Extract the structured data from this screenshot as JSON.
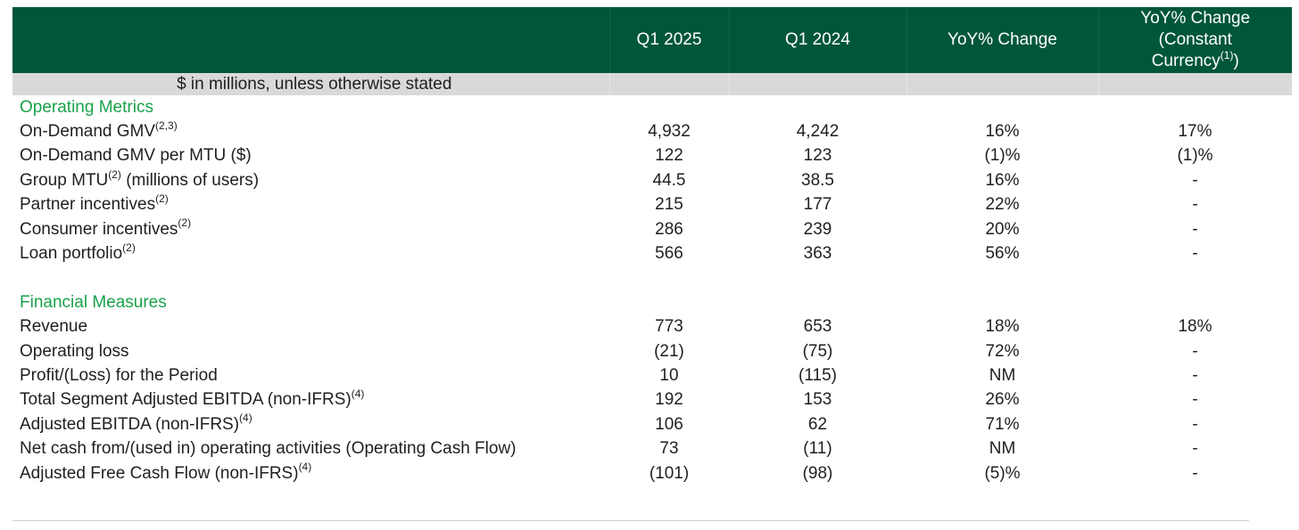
{
  "header": {
    "columns": [
      "",
      "Q1 2025",
      "Q1 2024",
      "YoY% Change"
    ],
    "last_column": {
      "line1": "YoY% Change",
      "line2": "(Constant",
      "line3": "Currency",
      "sup": "(1)",
      "close": ")"
    }
  },
  "units_note": "$ in millions, unless otherwise stated",
  "sections": [
    {
      "title": "Operating Metrics",
      "rows": [
        {
          "label": "On-Demand GMV",
          "sup": "(2,3)",
          "suffix": "",
          "values": [
            "4,932",
            "4,242",
            "16%",
            "17%"
          ]
        },
        {
          "label": "On-Demand GMV per MTU ($)",
          "sup": "",
          "suffix": "",
          "values": [
            "122",
            "123",
            "(1)%",
            "(1)%"
          ]
        },
        {
          "label": "Group MTU",
          "sup": "(2)",
          "suffix": " (millions of users)",
          "values": [
            "44.5",
            "38.5",
            "16%",
            "-"
          ]
        },
        {
          "label": "Partner incentives",
          "sup": "(2)",
          "suffix": "",
          "values": [
            "215",
            "177",
            "22%",
            "-"
          ]
        },
        {
          "label": "Consumer incentives",
          "sup": "(2)",
          "suffix": "",
          "values": [
            "286",
            "239",
            "20%",
            "-"
          ]
        },
        {
          "label": "Loan portfolio",
          "sup": "(2)",
          "suffix": "",
          "values": [
            "566",
            "363",
            "56%",
            "-"
          ]
        }
      ]
    },
    {
      "title": "Financial Measures",
      "rows": [
        {
          "label": "Revenue",
          "sup": "",
          "suffix": "",
          "values": [
            "773",
            "653",
            "18%",
            "18%"
          ]
        },
        {
          "label": "Operating loss",
          "sup": "",
          "suffix": "",
          "values": [
            "(21)",
            "(75)",
            "72%",
            "-"
          ]
        },
        {
          "label": "Profit/(Loss) for the Period",
          "sup": "",
          "suffix": "",
          "values": [
            "10",
            "(115)",
            "NM",
            "-"
          ]
        },
        {
          "label": "Total Segment Adjusted EBITDA (non-IFRS)",
          "sup": "(4)",
          "suffix": "",
          "values": [
            "192",
            "153",
            "26%",
            "-"
          ]
        },
        {
          "label": "Adjusted EBITDA (non-IFRS)",
          "sup": "(4)",
          "suffix": "",
          "values": [
            "106",
            "62",
            "71%",
            "-"
          ]
        },
        {
          "label": "Net cash from/(used in) operating activities (Operating Cash Flow)",
          "sup": "",
          "suffix": "",
          "values": [
            "73",
            "(11)",
            "NM",
            "-"
          ]
        },
        {
          "label": "Adjusted Free Cash Flow (non-IFRS)",
          "sup": "(4)",
          "suffix": "",
          "values": [
            "(101)",
            "(98)",
            "(5)%",
            "-"
          ]
        }
      ]
    }
  ],
  "colors": {
    "header_bg": "#00563a",
    "units_bg": "#d9d9d9",
    "section_title": "#1aa14a"
  }
}
